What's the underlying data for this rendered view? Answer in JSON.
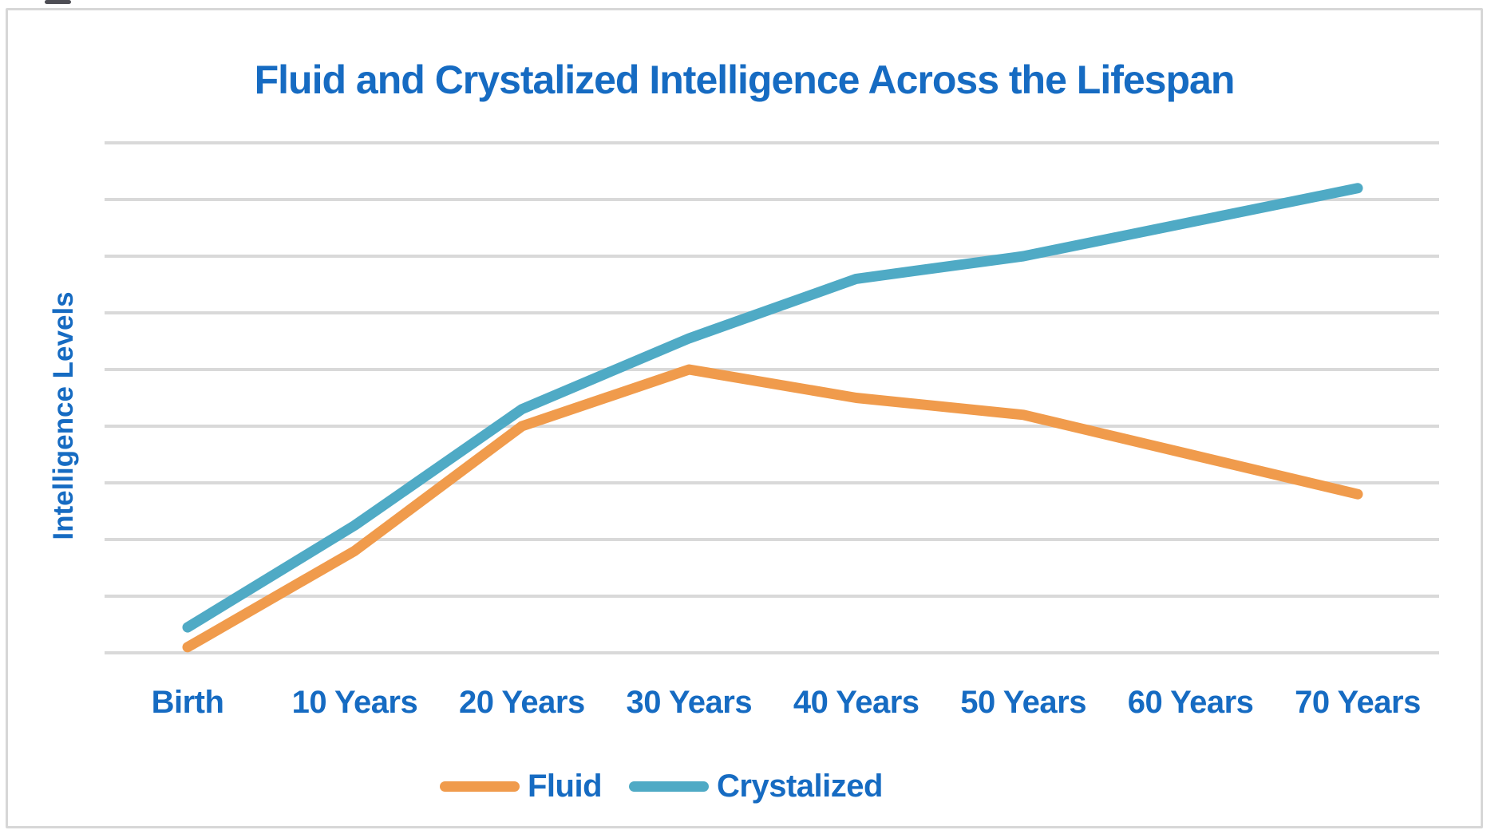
{
  "page": {
    "background": "#FFFFFF"
  },
  "artifact": {
    "description": "cropped dark UI fragment at top edge"
  },
  "chart_data": {
    "type": "line",
    "title": "Fluid and Crystalized Intelligence Across the Lifespan",
    "xlabel": "",
    "ylabel": "Intelligence Levels",
    "categories": [
      "Birth",
      "10 Years",
      "20 Years",
      "30 Years",
      "40 Years",
      "50 Years",
      "60 Years",
      "70 Years"
    ],
    "series": [
      {
        "name": "Fluid",
        "color": "#F09B4C",
        "values": [
          0.1,
          1.8,
          4.0,
          5.0,
          4.5,
          4.2,
          3.5,
          2.8
        ]
      },
      {
        "name": "Crystalized",
        "color": "#4FAAC5",
        "values": [
          0.45,
          2.25,
          4.3,
          5.55,
          6.6,
          7.0,
          7.6,
          8.2
        ]
      }
    ],
    "ylim": [
      0,
      9
    ],
    "y_gridline_count": 10,
    "y_tick_labels_visible": false,
    "grid": "horizontal",
    "legend_position": "bottom"
  },
  "colors": {
    "text_blue": "#166BC2",
    "gridline": "#D9D9D9",
    "frame_border": "#D7D7D7",
    "fluid": "#F09B4C",
    "crystalized": "#4FAAC5"
  }
}
